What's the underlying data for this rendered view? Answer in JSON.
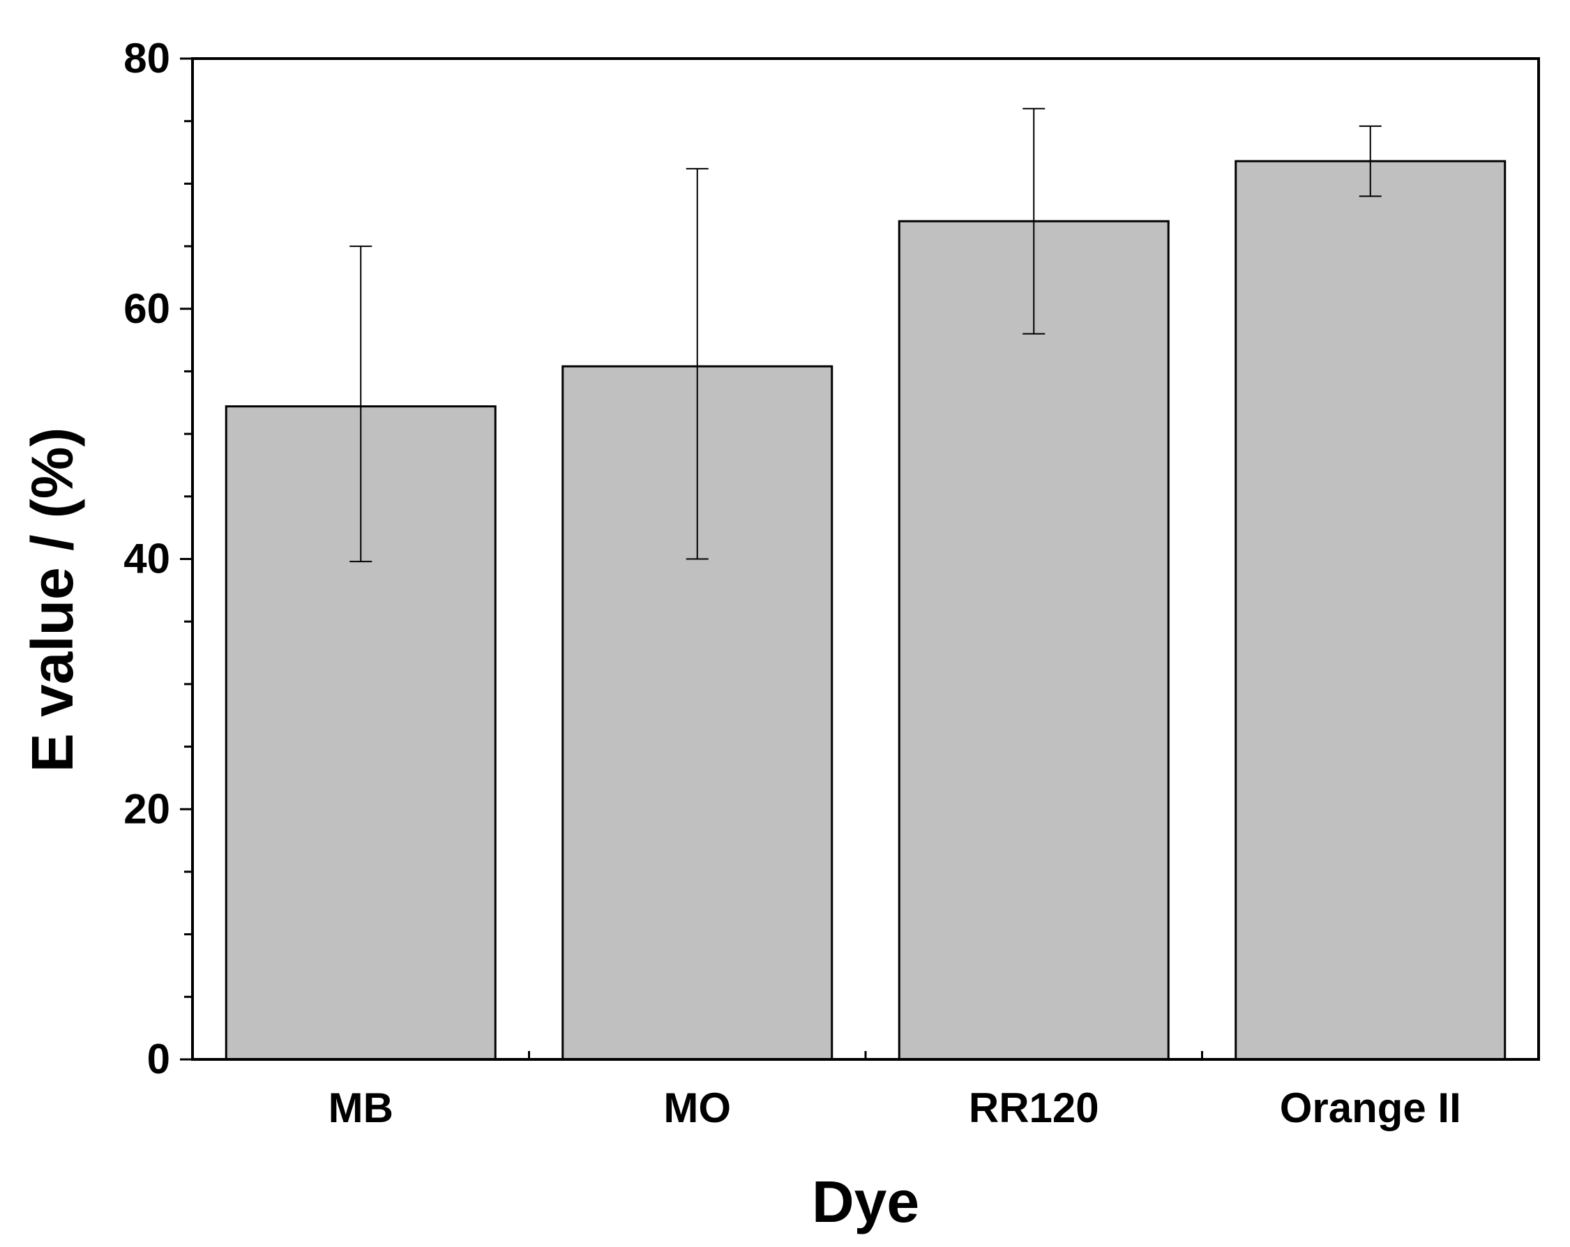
{
  "chart_data": {
    "type": "bar",
    "title": "",
    "xlabel": "Dye",
    "ylabel": "E value / (%)",
    "categories": [
      "MB",
      "MO",
      "RR120",
      "Orange II"
    ],
    "values": [
      52.2,
      55.4,
      67.0,
      71.8
    ],
    "errors": [
      {
        "lower": 39.8,
        "upper": 65.0
      },
      {
        "lower": 40.0,
        "upper": 71.2
      },
      {
        "lower": 58.0,
        "upper": 76.0
      },
      {
        "lower": 69.0,
        "upper": 74.6
      }
    ],
    "ylim": [
      0,
      80
    ],
    "yticks": [
      0,
      20,
      40,
      60,
      80
    ],
    "yticks_minor_step": 5,
    "grid": false,
    "bar_color": "#c0c0c0",
    "edge_color": "#000000"
  }
}
